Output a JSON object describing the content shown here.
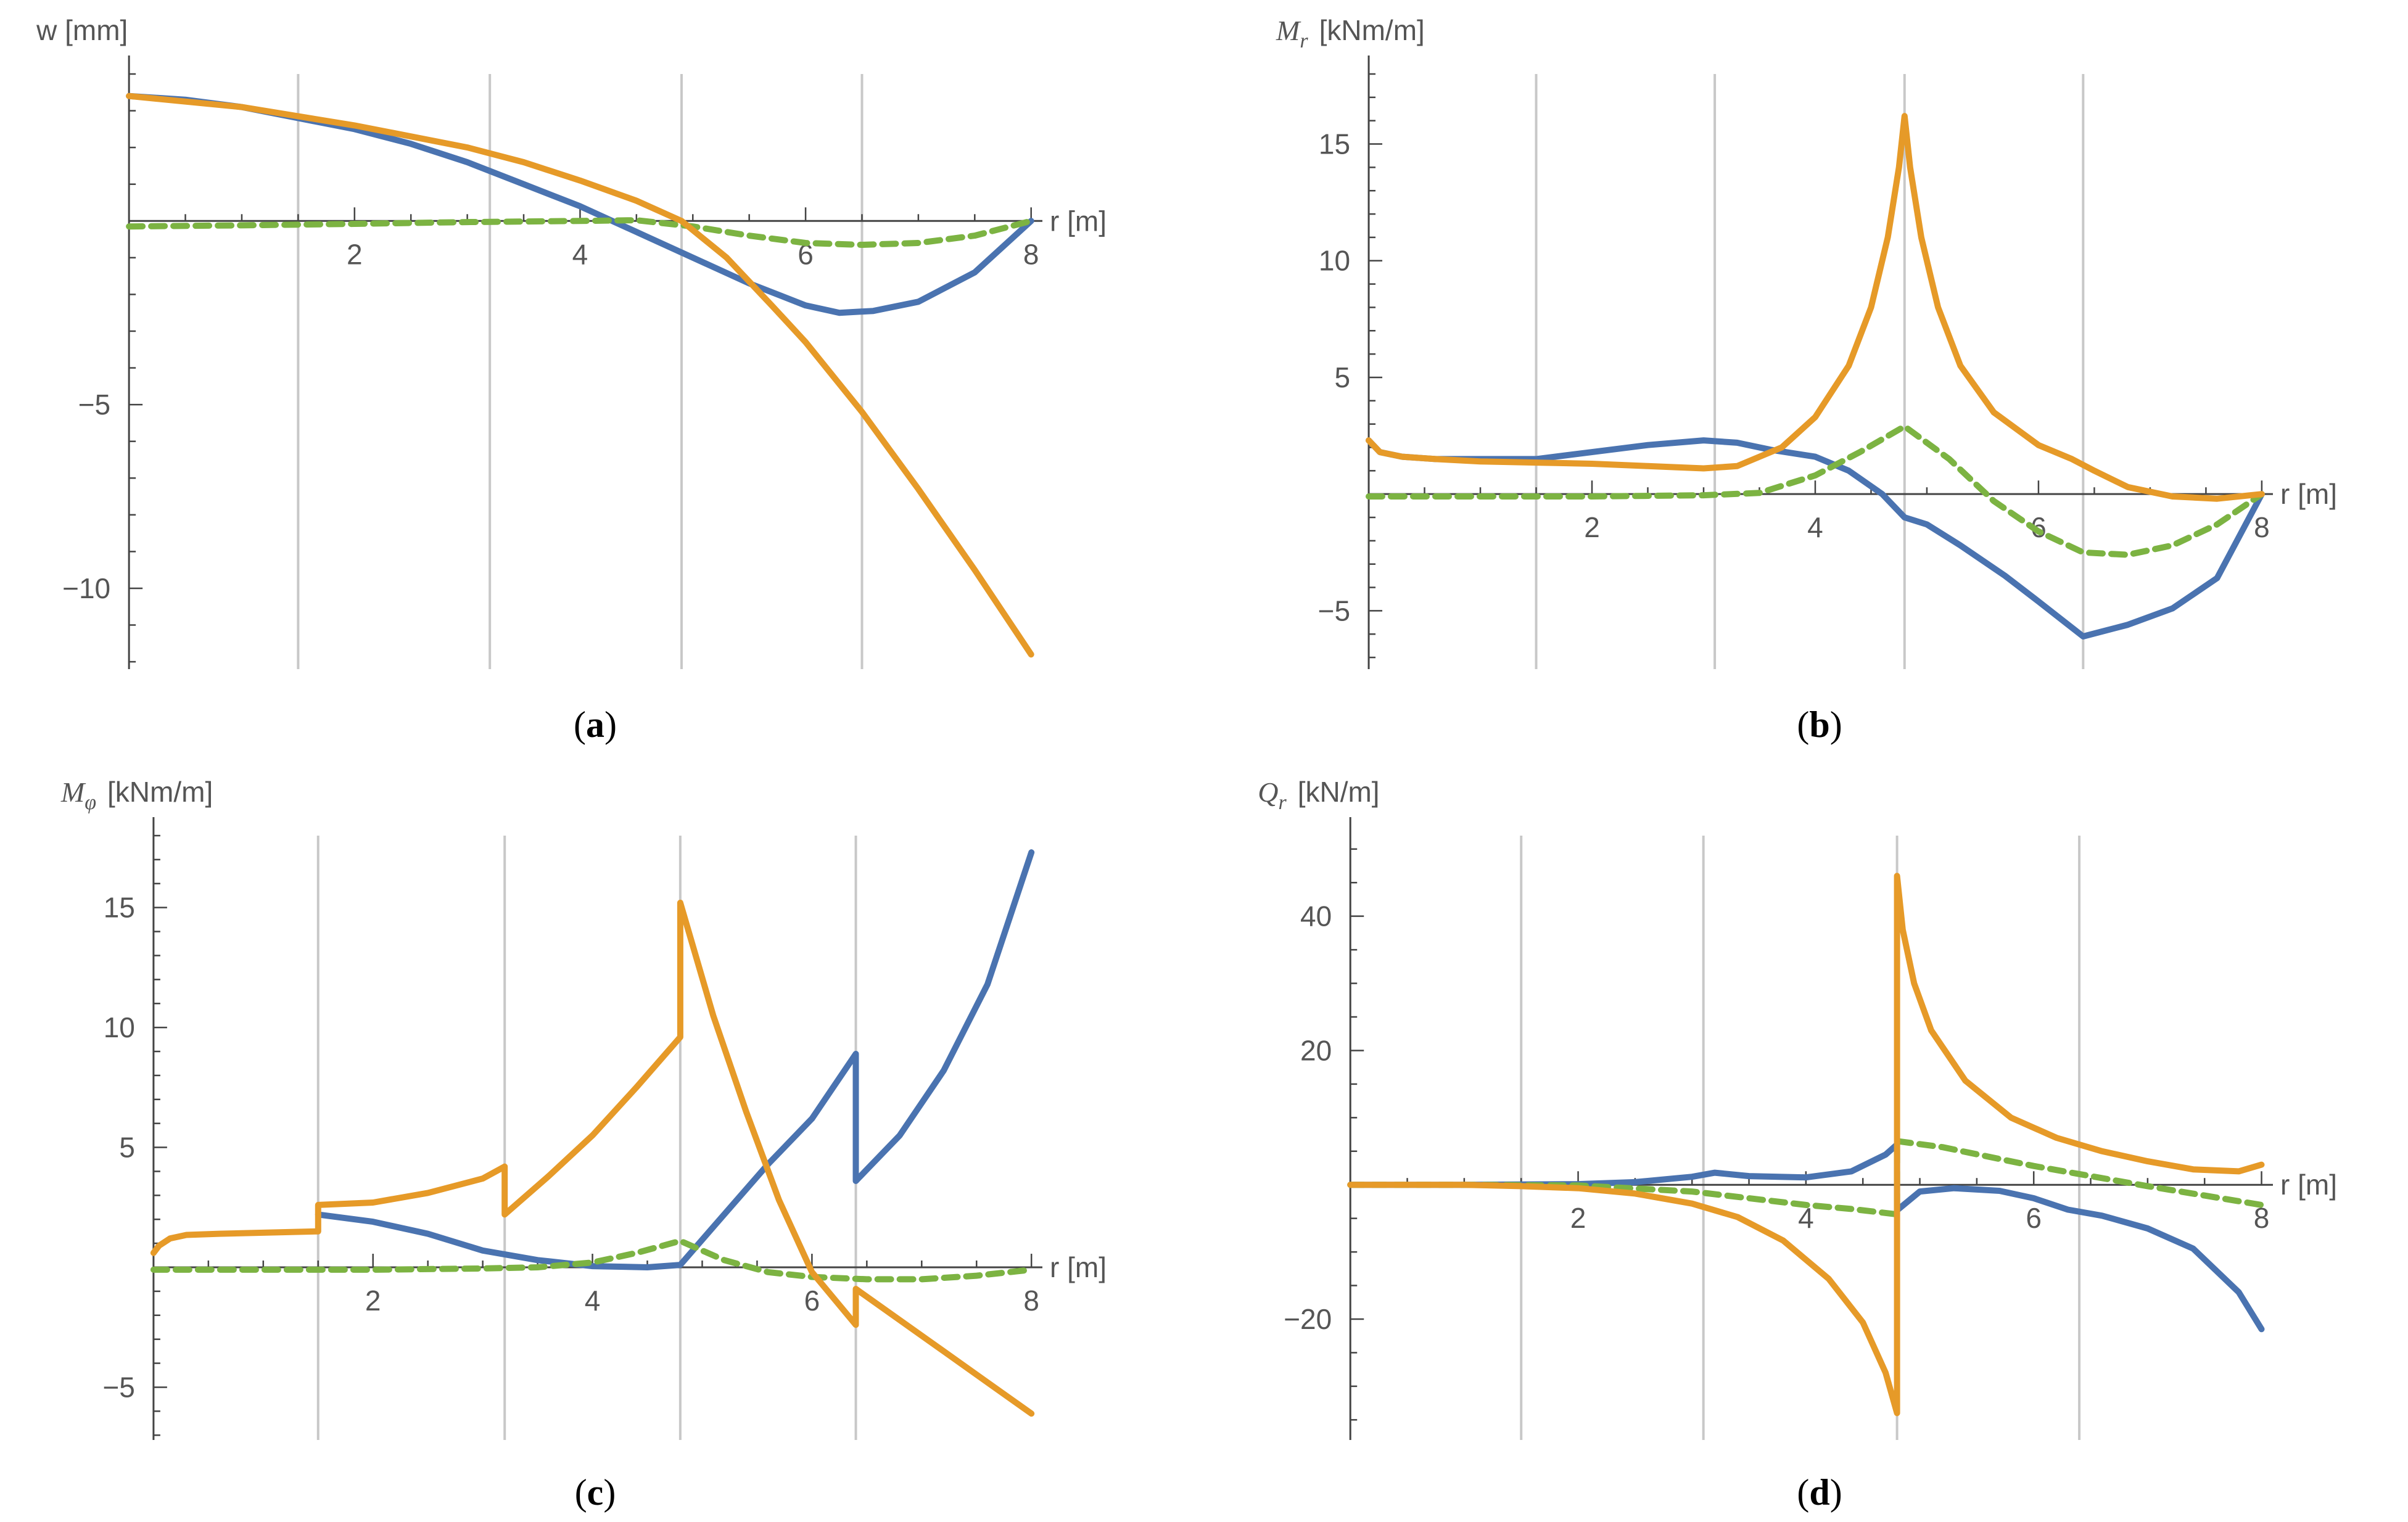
{
  "figure": {
    "colors": {
      "series1": "#4a73b0",
      "series2": "#e69a28",
      "series3": "#7cb342"
    },
    "panels": [
      {
        "id": "a",
        "caption": {
          "open": "(",
          "letter": "a",
          "close": ")"
        },
        "chart_data": {
          "type": "line",
          "ylabel": "w [mm]",
          "xlabel": "r [m]",
          "xlim": [
            -0.05,
            8.1
          ],
          "ylim": [
            -12.2,
            4.0
          ],
          "xticks": [
            2,
            4,
            6,
            8
          ],
          "yticks": [
            -5,
            -10
          ],
          "grid_x": [
            1.5,
            3.2,
            4.9,
            6.5
          ],
          "series": [
            {
              "name": "series1",
              "color": "#4a73b0",
              "dashed": false,
              "x": [
                0,
                0.5,
                1,
                1.5,
                2,
                2.5,
                3,
                3.5,
                4,
                4.5,
                5,
                5.5,
                6,
                6.3,
                6.6,
                7,
                7.5,
                8
              ],
              "y": [
                3.4,
                3.3,
                3.1,
                2.8,
                2.5,
                2.1,
                1.6,
                1.0,
                0.4,
                -0.3,
                -1.0,
                -1.7,
                -2.3,
                -2.5,
                -2.45,
                -2.2,
                -1.4,
                0
              ]
            },
            {
              "name": "series2",
              "color": "#e69a28",
              "dashed": false,
              "x": [
                0,
                1,
                2,
                3,
                3.5,
                4,
                4.5,
                4.9,
                5.3,
                5.7,
                6,
                6.5,
                7,
                7.5,
                8
              ],
              "y": [
                3.4,
                3.1,
                2.6,
                2.0,
                1.6,
                1.1,
                0.55,
                0,
                -1.0,
                -2.3,
                -3.3,
                -5.2,
                -7.3,
                -9.5,
                -11.8
              ]
            },
            {
              "name": "series3",
              "color": "#7cb342",
              "dashed": true,
              "x": [
                0,
                1,
                2,
                3,
                4,
                4.5,
                5,
                5.5,
                6,
                6.5,
                7,
                7.5,
                8
              ],
              "y": [
                -0.15,
                -0.12,
                -0.08,
                -0.03,
                0,
                0.02,
                -0.15,
                -0.4,
                -0.6,
                -0.65,
                -0.6,
                -0.4,
                0
              ]
            }
          ]
        }
      },
      {
        "id": "b",
        "caption": {
          "open": "(",
          "letter": "b",
          "close": ")"
        },
        "chart_data": {
          "type": "line",
          "ylabel_main": "M",
          "ylabel_sub": "r",
          "ylabel_unit": "[kNm/m]",
          "xlabel": "r [m]",
          "xlim": [
            -0.05,
            8.1
          ],
          "ylim": [
            -7.5,
            18.0
          ],
          "xticks": [
            2,
            4,
            6,
            8
          ],
          "yticks": [
            15,
            10,
            5,
            -5
          ],
          "grid_x": [
            1.5,
            3.1,
            4.8,
            6.4
          ],
          "series": [
            {
              "name": "series1",
              "color": "#4a73b0",
              "dashed": false,
              "x": [
                0,
                0.1,
                0.3,
                0.6,
                1,
                1.5,
                2,
                2.5,
                3,
                3.3,
                3.6,
                4,
                4.3,
                4.6,
                4.8,
                5,
                5.3,
                5.7,
                6,
                6.4,
                6.8,
                7.2,
                7.6,
                8
              ],
              "y": [
                2.3,
                1.8,
                1.6,
                1.5,
                1.5,
                1.5,
                1.8,
                2.1,
                2.3,
                2.2,
                1.9,
                1.6,
                1.0,
                0,
                -1.0,
                -1.3,
                -2.2,
                -3.5,
                -4.6,
                -6.1,
                -5.6,
                -4.9,
                -3.6,
                0
              ]
            },
            {
              "name": "series2",
              "color": "#e69a28",
              "dashed": false,
              "x": [
                0,
                0.1,
                0.3,
                0.6,
                1,
                1.5,
                2,
                2.5,
                3,
                3.3,
                3.7,
                4,
                4.3,
                4.5,
                4.65,
                4.75,
                4.8,
                4.85,
                4.95,
                5.1,
                5.3,
                5.6,
                6,
                6.3,
                6.5,
                6.8,
                7.2,
                7.6,
                8
              ],
              "y": [
                2.3,
                1.8,
                1.6,
                1.5,
                1.4,
                1.35,
                1.3,
                1.2,
                1.1,
                1.2,
                2.0,
                3.3,
                5.5,
                8.0,
                11.0,
                14.0,
                16.2,
                14.0,
                11.0,
                8.0,
                5.5,
                3.5,
                2.1,
                1.5,
                1.0,
                0.3,
                -0.1,
                -0.2,
                0
              ]
            },
            {
              "name": "series3",
              "color": "#7cb342",
              "dashed": true,
              "x": [
                0,
                1,
                2,
                3,
                3.5,
                4,
                4.4,
                4.8,
                5.2,
                5.6,
                6,
                6.4,
                6.8,
                7.2,
                7.6,
                8
              ],
              "y": [
                -0.1,
                -0.1,
                -0.1,
                -0.05,
                0.05,
                0.8,
                1.8,
                2.9,
                1.5,
                -0.3,
                -1.6,
                -2.5,
                -2.6,
                -2.2,
                -1.3,
                0
              ]
            }
          ]
        }
      },
      {
        "id": "c",
        "caption": {
          "open": "(",
          "letter": "c",
          "close": ")"
        },
        "chart_data": {
          "type": "line",
          "ylabel_main": "M",
          "ylabel_sub": "φ",
          "ylabel_unit": "[kNm/m]",
          "xlabel": "r [m]",
          "xlim": [
            -0.05,
            8.1
          ],
          "ylim": [
            -7.2,
            18.0
          ],
          "xticks": [
            2,
            4,
            6,
            8
          ],
          "yticks": [
            15,
            10,
            5,
            -5
          ],
          "grid_x": [
            1.5,
            3.2,
            4.8,
            6.4
          ],
          "series": [
            {
              "name": "series1",
              "color": "#4a73b0",
              "dashed": false,
              "x": [
                1.5,
                2,
                2.5,
                3,
                3.5,
                4,
                4.5,
                4.8,
                5.2,
                5.6,
                6,
                6.4,
                6.4,
                6.8,
                7.2,
                7.6,
                8
              ],
              "y": [
                2.2,
                1.9,
                1.4,
                0.7,
                0.3,
                0.05,
                0,
                0.1,
                2.2,
                4.3,
                6.2,
                8.9,
                3.6,
                5.5,
                8.2,
                11.8,
                17.3
              ]
            },
            {
              "name": "series2",
              "color": "#e69a28",
              "dashed": false,
              "x": [
                0,
                0.05,
                0.15,
                0.3,
                0.6,
                1.5,
                1.5,
                2,
                2.5,
                3,
                3.2,
                3.2,
                3.6,
                4,
                4.4,
                4.8,
                4.8,
                5.1,
                5.4,
                5.7,
                6,
                6.4,
                6.4,
                6.8,
                7.2,
                7.6,
                8
              ],
              "y": [
                0.6,
                0.9,
                1.2,
                1.35,
                1.4,
                1.5,
                2.6,
                2.7,
                3.1,
                3.7,
                4.2,
                2.2,
                3.8,
                5.5,
                7.5,
                9.6,
                15.2,
                10.5,
                6.5,
                2.8,
                -0.2,
                -2.4,
                -0.9,
                -2.2,
                -3.5,
                -4.8,
                -6.1
              ]
            },
            {
              "name": "series3",
              "color": "#7cb342",
              "dashed": true,
              "x": [
                0,
                1,
                2,
                3,
                3.5,
                4,
                4.4,
                4.8,
                5.2,
                5.6,
                6,
                6.5,
                7,
                7.5,
                8
              ],
              "y": [
                -0.1,
                -0.1,
                -0.1,
                -0.05,
                0,
                0.2,
                0.6,
                1.1,
                0.3,
                -0.2,
                -0.4,
                -0.5,
                -0.5,
                -0.35,
                -0.1
              ]
            }
          ]
        }
      },
      {
        "id": "d",
        "caption": {
          "open": "(",
          "letter": "d",
          "close": ")"
        },
        "chart_data": {
          "type": "line",
          "ylabel_main": "Q",
          "ylabel_sub": "r",
          "ylabel_unit": "[kN/m]",
          "xlabel": "r [m]",
          "xlim": [
            -0.05,
            8.1
          ],
          "ylim": [
            -38,
            52
          ],
          "xticks": [
            2,
            4,
            6,
            8
          ],
          "yticks": [
            40,
            20,
            -20
          ],
          "grid_x": [
            1.5,
            3.1,
            4.8,
            6.4
          ],
          "series": [
            {
              "name": "series1",
              "color": "#4a73b0",
              "dashed": false,
              "x": [
                0,
                1,
                2,
                2.5,
                3,
                3.2,
                3.5,
                4,
                4.4,
                4.7,
                4.8,
                4.8,
                5,
                5.3,
                5.7,
                6,
                6.3,
                6.6,
                7,
                7.4,
                7.8,
                8
              ],
              "y": [
                0,
                0,
                0.1,
                0.4,
                1.2,
                1.8,
                1.3,
                1.1,
                2.0,
                4.5,
                6.0,
                -3.8,
                -1.0,
                -0.5,
                -0.9,
                -2.0,
                -3.7,
                -4.6,
                -6.5,
                -9.5,
                -16.0,
                -21.5
              ]
            },
            {
              "name": "series2",
              "color": "#e69a28",
              "dashed": false,
              "x": [
                0,
                1,
                1.5,
                2,
                2.5,
                3,
                3.4,
                3.8,
                4.2,
                4.5,
                4.7,
                4.8,
                4.8,
                4.85,
                4.95,
                5.1,
                5.4,
                5.8,
                6.2,
                6.6,
                7,
                7.4,
                7.8,
                8
              ],
              "y": [
                0,
                0,
                -0.2,
                -0.5,
                -1.3,
                -2.8,
                -4.8,
                -8.3,
                -14.0,
                -20.5,
                -28.0,
                -34.0,
                46.0,
                38.0,
                30.0,
                23.0,
                15.5,
                10.0,
                7.0,
                5.0,
                3.5,
                2.3,
                2.0,
                3.0
              ]
            },
            {
              "name": "series3",
              "color": "#7cb342",
              "dashed": true,
              "x": [
                0,
                1,
                2,
                3,
                3.5,
                4,
                4.4,
                4.8,
                4.8,
                5.2,
                5.6,
                6,
                6.5,
                7,
                7.5,
                8
              ],
              "y": [
                0,
                0,
                -0.1,
                -1.0,
                -2.0,
                -3.0,
                -3.6,
                -4.4,
                6.5,
                5.6,
                4.2,
                2.8,
                1.3,
                -0.2,
                -1.6,
                -3.0
              ]
            }
          ]
        }
      }
    ]
  }
}
